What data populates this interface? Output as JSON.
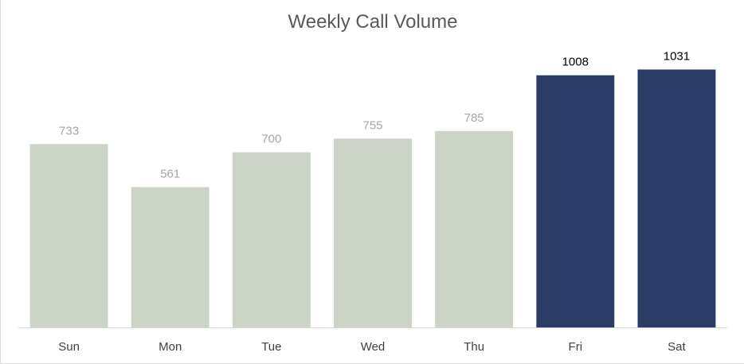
{
  "chart_data": {
    "type": "bar",
    "title": "Weekly Call Volume",
    "xlabel": "",
    "ylabel": "",
    "categories": [
      "Sun",
      "Mon",
      "Tue",
      "Wed",
      "Thu",
      "Fri",
      "Sat"
    ],
    "values": [
      733,
      561,
      700,
      755,
      785,
      1008,
      1031
    ],
    "highlighted": [
      false,
      false,
      false,
      false,
      false,
      true,
      true
    ],
    "data_labels": [
      "733",
      "561",
      "700",
      "755",
      "785",
      "1008",
      "1031"
    ],
    "ylim": [
      0,
      1150
    ],
    "grid": false,
    "legend": "none",
    "colors": {
      "default_bar": "#ccd3c7",
      "highlight_bar": "#2b3d67",
      "default_label": "#a6a6a6",
      "highlight_label": "#000000",
      "axis": "#d9d9d9"
    }
  }
}
